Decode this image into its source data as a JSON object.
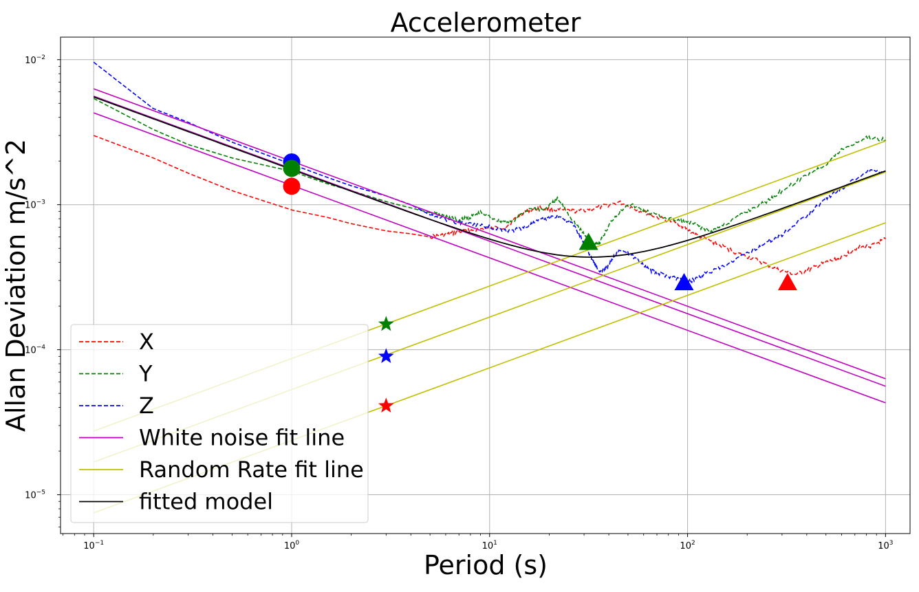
{
  "chart_data": {
    "type": "line",
    "title": "Accelerometer",
    "xlabel": "Period (s)",
    "ylabel": "Allan Deviation m/s^2",
    "x_scale": "log",
    "y_scale": "log",
    "xlim": [
      0.068,
      1330
    ],
    "ylim": [
      5.4e-06,
      0.0143
    ],
    "grid": true,
    "x_ticks": [
      {
        "value": 0.1,
        "base": "10",
        "exp": "−1"
      },
      {
        "value": 1,
        "base": "10",
        "exp": "0"
      },
      {
        "value": 10,
        "base": "10",
        "exp": "1"
      },
      {
        "value": 100,
        "base": "10",
        "exp": "2"
      },
      {
        "value": 1000,
        "base": "10",
        "exp": "3"
      }
    ],
    "y_ticks": [
      {
        "value": 1e-05,
        "base": "10",
        "exp": "−5"
      },
      {
        "value": 0.0001,
        "base": "10",
        "exp": "−4"
      },
      {
        "value": 0.001,
        "base": "10",
        "exp": "−3"
      },
      {
        "value": 0.01,
        "base": "10",
        "exp": "−2"
      }
    ],
    "legend": {
      "position": "lower-left",
      "entries": [
        {
          "label": "X",
          "color": "#ff0000",
          "style": "dashed"
        },
        {
          "label": "Y",
          "color": "#008000",
          "style": "dashed"
        },
        {
          "label": "Z",
          "color": "#0000ff",
          "style": "dashed"
        },
        {
          "label": "White noise fit line",
          "color": "#bf00bf",
          "style": "solid"
        },
        {
          "label": "Random Rate fit line",
          "color": "#bfbf00",
          "style": "solid"
        },
        {
          "label": "fitted model",
          "color": "#000000",
          "style": "solid"
        }
      ]
    },
    "series": [
      {
        "name": "X",
        "color": "#ff0000",
        "style": "dashed",
        "points": [
          [
            0.1,
            0.003
          ],
          [
            0.2,
            0.0021
          ],
          [
            0.3,
            0.00165
          ],
          [
            0.5,
            0.00125
          ],
          [
            1,
            0.00092
          ],
          [
            1.5,
            0.00082
          ],
          [
            2,
            0.00074
          ],
          [
            3,
            0.00066
          ],
          [
            4,
            0.00063
          ],
          [
            5,
            0.0006
          ],
          [
            6,
            0.00062
          ],
          [
            7,
            0.00065
          ],
          [
            9,
            0.00068
          ],
          [
            12,
            0.0007
          ],
          [
            15,
            0.0009
          ],
          [
            18,
            0.00095
          ],
          [
            22,
            0.00092
          ],
          [
            28,
            0.0009
          ],
          [
            35,
            0.00095
          ],
          [
            45,
            0.00104
          ],
          [
            55,
            0.00093
          ],
          [
            70,
            0.00082
          ],
          [
            90,
            0.00074
          ],
          [
            110,
            0.00062
          ],
          [
            140,
            0.00054
          ],
          [
            180,
            0.00046
          ],
          [
            220,
            0.00042
          ],
          [
            280,
            0.00036
          ],
          [
            350,
            0.00033
          ],
          [
            420,
            0.00036
          ],
          [
            500,
            0.0004
          ],
          [
            600,
            0.00043
          ],
          [
            700,
            0.0005
          ],
          [
            850,
            0.00052
          ],
          [
            1000,
            0.00058
          ]
        ]
      },
      {
        "name": "Y",
        "color": "#008000",
        "style": "dashed",
        "points": [
          [
            0.1,
            0.0054
          ],
          [
            0.2,
            0.0033
          ],
          [
            0.3,
            0.0026
          ],
          [
            0.5,
            0.0021
          ],
          [
            1,
            0.0017
          ],
          [
            1.5,
            0.0014
          ],
          [
            2,
            0.00125
          ],
          [
            3,
            0.00105
          ],
          [
            4,
            0.00095
          ],
          [
            5,
            0.00088
          ],
          [
            6,
            0.00083
          ],
          [
            7,
            0.00078
          ],
          [
            8,
            0.00082
          ],
          [
            9,
            0.00088
          ],
          [
            11,
            0.00078
          ],
          [
            13,
            0.00076
          ],
          [
            16,
            0.00095
          ],
          [
            19,
            0.00092
          ],
          [
            22,
            0.0011
          ],
          [
            26,
            0.0008
          ],
          [
            30,
            0.00062
          ],
          [
            33,
            0.00054
          ],
          [
            36,
            0.00055
          ],
          [
            42,
            0.0008
          ],
          [
            50,
            0.00102
          ],
          [
            60,
            0.00091
          ],
          [
            75,
            0.00082
          ],
          [
            90,
            0.00078
          ],
          [
            110,
            0.00073
          ],
          [
            130,
            0.00065
          ],
          [
            160,
            0.00075
          ],
          [
            200,
            0.0009
          ],
          [
            250,
            0.00105
          ],
          [
            300,
            0.00125
          ],
          [
            400,
            0.0016
          ],
          [
            500,
            0.0019
          ],
          [
            600,
            0.0024
          ],
          [
            800,
            0.0029
          ],
          [
            1000,
            0.0028
          ]
        ]
      },
      {
        "name": "Z",
        "color": "#0000ff",
        "style": "dashed",
        "points": [
          [
            0.1,
            0.0096
          ],
          [
            0.2,
            0.0046
          ],
          [
            0.3,
            0.0037
          ],
          [
            0.5,
            0.0027
          ],
          [
            1,
            0.0019
          ],
          [
            1.5,
            0.00155
          ],
          [
            2,
            0.00135
          ],
          [
            3,
            0.00115
          ],
          [
            4,
            0.001
          ],
          [
            5,
            0.00085
          ],
          [
            7,
            0.00075
          ],
          [
            9,
            0.00072
          ],
          [
            11,
            0.00068
          ],
          [
            13,
            0.00066
          ],
          [
            15,
            0.0007
          ],
          [
            18,
            0.00078
          ],
          [
            22,
            0.00084
          ],
          [
            26,
            0.00075
          ],
          [
            30,
            0.00055
          ],
          [
            33,
            0.00042
          ],
          [
            36,
            0.00034
          ],
          [
            40,
            0.00038
          ],
          [
            45,
            0.0005
          ],
          [
            55,
            0.00043
          ],
          [
            65,
            0.00035
          ],
          [
            75,
            0.00033
          ],
          [
            90,
            0.00031
          ],
          [
            105,
            0.0003
          ],
          [
            120,
            0.00033
          ],
          [
            150,
            0.00037
          ],
          [
            200,
            0.00046
          ],
          [
            250,
            0.00055
          ],
          [
            300,
            0.00062
          ],
          [
            400,
            0.00085
          ],
          [
            500,
            0.0011
          ],
          [
            600,
            0.0013
          ],
          [
            800,
            0.0017
          ],
          [
            1000,
            0.0017
          ]
        ]
      },
      {
        "name": "White noise fit line",
        "color": "#bf00bf",
        "style": "solid",
        "points": [
          [
            0.1,
            0.0063
          ],
          [
            1000,
            6.3e-05
          ]
        ]
      },
      {
        "name": "White noise fit line",
        "color": "#bf00bf",
        "style": "solid",
        "points": [
          [
            0.1,
            0.0056
          ],
          [
            1000,
            5.6e-05
          ]
        ]
      },
      {
        "name": "White noise fit line",
        "color": "#bf00bf",
        "style": "solid",
        "points": [
          [
            0.1,
            0.0043
          ],
          [
            1000,
            4.3e-05
          ]
        ]
      },
      {
        "name": "Random Rate fit line",
        "color": "#bfbf00",
        "style": "solid",
        "points": [
          [
            0.1,
            2.75e-05
          ],
          [
            1000,
            0.00275
          ]
        ]
      },
      {
        "name": "Random Rate fit line",
        "color": "#bfbf00",
        "style": "solid",
        "points": [
          [
            0.1,
            1.68e-05
          ],
          [
            1000,
            0.00168
          ]
        ]
      },
      {
        "name": "Random Rate fit line",
        "color": "#bfbf00",
        "style": "solid",
        "points": [
          [
            0.1,
            7.5e-06
          ],
          [
            1000,
            0.00075
          ]
        ]
      },
      {
        "name": "fitted model",
        "color": "#000000",
        "style": "solid",
        "model": {
          "a": 0.00175,
          "b": 5.4e-05
        }
      }
    ],
    "markers": [
      {
        "shape": "circle",
        "color": "#0000ff",
        "x": 1,
        "y": 0.00197
      },
      {
        "shape": "circle",
        "color": "#008000",
        "x": 1,
        "y": 0.00178
      },
      {
        "shape": "circle",
        "color": "#ff0000",
        "x": 1,
        "y": 0.00134
      },
      {
        "shape": "triangle",
        "color": "#008000",
        "x": 31.6,
        "y": 0.00055
      },
      {
        "shape": "triangle",
        "color": "#0000ff",
        "x": 96,
        "y": 0.00029
      },
      {
        "shape": "triangle",
        "color": "#ff0000",
        "x": 320,
        "y": 0.00029
      },
      {
        "shape": "star",
        "color": "#008000",
        "x": 3,
        "y": 0.00015
      },
      {
        "shape": "star",
        "color": "#0000ff",
        "x": 3,
        "y": 9e-05
      },
      {
        "shape": "star",
        "color": "#ff0000",
        "x": 3,
        "y": 4.1e-05
      }
    ]
  }
}
